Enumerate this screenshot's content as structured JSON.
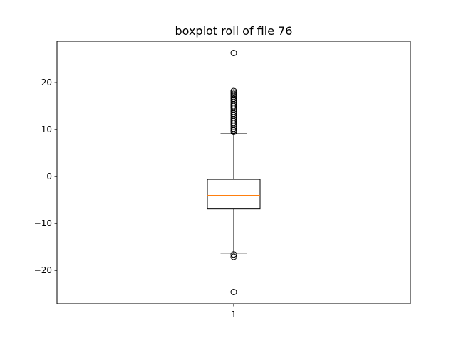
{
  "chart_data": {
    "type": "boxplot",
    "title": "boxplot roll of file 76",
    "xlabel": "",
    "ylabel": "",
    "ylim": [
      -27.1,
      28.8
    ],
    "yticks": [
      -20,
      -10,
      0,
      10,
      20
    ],
    "ytick_labels": [
      "−20",
      "−10",
      "0",
      "10",
      "20"
    ],
    "categories": [
      "1"
    ],
    "grid": false,
    "boxes": [
      {
        "category": "1",
        "whisker_low": -16.3,
        "q1": -6.9,
        "median": -4.0,
        "q3": -0.6,
        "whisker_high": 9.1,
        "fliers": [
          26.3,
          18.2,
          17.9,
          17.6,
          17.3,
          17.0,
          16.6,
          16.2,
          15.8,
          15.4,
          15.0,
          14.6,
          14.2,
          13.8,
          13.4,
          13.0,
          12.6,
          12.2,
          11.8,
          11.4,
          11.0,
          10.6,
          10.2,
          9.8,
          9.5,
          -16.6,
          -17.1,
          -24.6
        ]
      }
    ],
    "colors": {
      "box": "#000000",
      "median": "#ff7f0e",
      "flier": "#000000",
      "axes": "#000000"
    }
  }
}
